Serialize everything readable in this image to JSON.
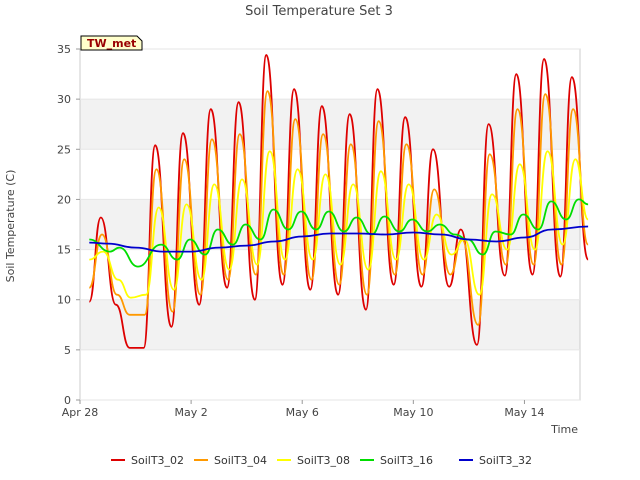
{
  "chart_data": {
    "type": "line",
    "title": "Soil Temperature Set 3",
    "xlabel": "Time",
    "ylabel": "Soil Temperature (C)",
    "ylim": [
      0,
      35
    ],
    "yticks": [
      0,
      5,
      10,
      15,
      20,
      25,
      30,
      35
    ],
    "xlim": [
      "2024-04-28",
      "2024-05-16"
    ],
    "xticks": [
      {
        "date": "2024-04-28",
        "label": "Apr 28"
      },
      {
        "date": "2024-05-02",
        "label": "May 2"
      },
      {
        "date": "2024-05-06",
        "label": "May 6"
      },
      {
        "date": "2024-05-10",
        "label": "May 10"
      },
      {
        "date": "2024-05-14",
        "label": "May 14"
      }
    ],
    "grid": "horizontal-bands",
    "legend_position": "bottom",
    "annotation": "TW_met",
    "series": [
      {
        "name": "SoilT3_02",
        "color": "#dd0000",
        "points": [
          [
            "2024-04-28T08:00",
            9.8
          ],
          [
            "2024-04-28T18:00",
            18.2
          ],
          [
            "2024-04-29T07:00",
            9.5
          ],
          [
            "2024-04-29T19:00",
            5.2
          ],
          [
            "2024-04-30T07:00",
            5.2
          ],
          [
            "2024-04-30T17:00",
            25.4
          ],
          [
            "2024-05-01T07:00",
            7.3
          ],
          [
            "2024-05-01T17:00",
            26.6
          ],
          [
            "2024-05-02T07:00",
            9.5
          ],
          [
            "2024-05-02T17:00",
            29.0
          ],
          [
            "2024-05-03T07:00",
            11.2
          ],
          [
            "2024-05-03T17:00",
            29.7
          ],
          [
            "2024-05-04T07:00",
            10.0
          ],
          [
            "2024-05-04T17:00",
            34.4
          ],
          [
            "2024-05-05T07:00",
            11.5
          ],
          [
            "2024-05-05T17:00",
            31.0
          ],
          [
            "2024-05-06T07:00",
            11.0
          ],
          [
            "2024-05-06T17:00",
            29.3
          ],
          [
            "2024-05-07T07:00",
            10.5
          ],
          [
            "2024-05-07T17:00",
            28.5
          ],
          [
            "2024-05-08T07:00",
            9.0
          ],
          [
            "2024-05-08T17:00",
            31.0
          ],
          [
            "2024-05-09T07:00",
            11.5
          ],
          [
            "2024-05-09T17:00",
            28.2
          ],
          [
            "2024-05-10T07:00",
            11.3
          ],
          [
            "2024-05-10T17:00",
            25.0
          ],
          [
            "2024-05-11T07:00",
            11.3
          ],
          [
            "2024-05-11T17:00",
            17.0
          ],
          [
            "2024-05-12T07:00",
            5.5
          ],
          [
            "2024-05-12T17:00",
            27.5
          ],
          [
            "2024-05-13T07:00",
            12.4
          ],
          [
            "2024-05-13T17:00",
            32.5
          ],
          [
            "2024-05-14T07:00",
            12.5
          ],
          [
            "2024-05-14T17:00",
            34.0
          ],
          [
            "2024-05-15T07:00",
            12.3
          ],
          [
            "2024-05-15T17:00",
            32.2
          ],
          [
            "2024-05-16T07:00",
            14.0
          ]
        ]
      },
      {
        "name": "SoilT3_04",
        "color": "#ff9900",
        "points": [
          [
            "2024-04-28T08:00",
            11.2
          ],
          [
            "2024-04-28T19:00",
            16.5
          ],
          [
            "2024-04-29T08:00",
            10.5
          ],
          [
            "2024-04-29T19:00",
            8.5
          ],
          [
            "2024-04-30T08:00",
            8.5
          ],
          [
            "2024-04-30T18:00",
            23.0
          ],
          [
            "2024-05-01T08:00",
            8.8
          ],
          [
            "2024-05-01T18:00",
            24.0
          ],
          [
            "2024-05-02T08:00",
            10.5
          ],
          [
            "2024-05-02T18:00",
            26.0
          ],
          [
            "2024-05-03T08:00",
            12.0
          ],
          [
            "2024-05-03T18:00",
            26.5
          ],
          [
            "2024-05-04T08:00",
            12.5
          ],
          [
            "2024-05-04T18:00",
            30.8
          ],
          [
            "2024-05-05T08:00",
            12.5
          ],
          [
            "2024-05-05T18:00",
            28.0
          ],
          [
            "2024-05-06T08:00",
            12.0
          ],
          [
            "2024-05-06T18:00",
            26.5
          ],
          [
            "2024-05-07T08:00",
            11.5
          ],
          [
            "2024-05-07T18:00",
            25.5
          ],
          [
            "2024-05-08T08:00",
            10.5
          ],
          [
            "2024-05-08T18:00",
            27.8
          ],
          [
            "2024-05-09T08:00",
            12.5
          ],
          [
            "2024-05-09T18:00",
            25.5
          ],
          [
            "2024-05-10T08:00",
            12.5
          ],
          [
            "2024-05-10T18:00",
            21.0
          ],
          [
            "2024-05-11T08:00",
            12.5
          ],
          [
            "2024-05-11T18:00",
            16.0
          ],
          [
            "2024-05-12T08:00",
            7.5
          ],
          [
            "2024-05-12T18:00",
            24.5
          ],
          [
            "2024-05-13T08:00",
            13.5
          ],
          [
            "2024-05-13T18:00",
            29.0
          ],
          [
            "2024-05-14T08:00",
            13.5
          ],
          [
            "2024-05-14T18:00",
            30.5
          ],
          [
            "2024-05-15T08:00",
            13.5
          ],
          [
            "2024-05-15T18:00",
            29.0
          ],
          [
            "2024-05-16T07:00",
            15.5
          ]
        ]
      },
      {
        "name": "SoilT3_08",
        "color": "#ffff00",
        "points": [
          [
            "2024-04-28T08:00",
            14.0
          ],
          [
            "2024-04-28T20:00",
            14.8
          ],
          [
            "2024-04-29T09:00",
            12.0
          ],
          [
            "2024-04-29T20:00",
            10.2
          ],
          [
            "2024-04-30T09:00",
            10.5
          ],
          [
            "2024-04-30T20:00",
            19.2
          ],
          [
            "2024-05-01T09:00",
            11.0
          ],
          [
            "2024-05-01T20:00",
            19.5
          ],
          [
            "2024-05-02T09:00",
            12.0
          ],
          [
            "2024-05-02T20:00",
            21.5
          ],
          [
            "2024-05-03T09:00",
            13.0
          ],
          [
            "2024-05-03T20:00",
            22.0
          ],
          [
            "2024-05-04T09:00",
            13.5
          ],
          [
            "2024-05-04T20:00",
            24.8
          ],
          [
            "2024-05-05T09:00",
            14.0
          ],
          [
            "2024-05-05T20:00",
            23.0
          ],
          [
            "2024-05-06T09:00",
            14.0
          ],
          [
            "2024-05-06T20:00",
            22.5
          ],
          [
            "2024-05-07T09:00",
            13.5
          ],
          [
            "2024-05-07T20:00",
            21.5
          ],
          [
            "2024-05-08T09:00",
            13.0
          ],
          [
            "2024-05-08T20:00",
            22.8
          ],
          [
            "2024-05-09T09:00",
            14.0
          ],
          [
            "2024-05-09T20:00",
            21.5
          ],
          [
            "2024-05-10T09:00",
            14.0
          ],
          [
            "2024-05-10T20:00",
            18.5
          ],
          [
            "2024-05-11T09:00",
            14.5
          ],
          [
            "2024-05-11T20:00",
            16.0
          ],
          [
            "2024-05-12T09:00",
            10.5
          ],
          [
            "2024-05-12T20:00",
            20.5
          ],
          [
            "2024-05-13T09:00",
            15.0
          ],
          [
            "2024-05-13T20:00",
            23.5
          ],
          [
            "2024-05-14T09:00",
            15.0
          ],
          [
            "2024-05-14T20:00",
            24.8
          ],
          [
            "2024-05-15T09:00",
            15.5
          ],
          [
            "2024-05-15T20:00",
            24.0
          ],
          [
            "2024-05-16T07:00",
            18.0
          ]
        ]
      },
      {
        "name": "SoilT3_16",
        "color": "#00dd00",
        "points": [
          [
            "2024-04-28T08:00",
            16.0
          ],
          [
            "2024-04-29T02:00",
            14.8
          ],
          [
            "2024-04-29T10:00",
            15.2
          ],
          [
            "2024-04-30T02:00",
            13.3
          ],
          [
            "2024-04-30T22:00",
            15.5
          ],
          [
            "2024-05-01T12:00",
            14.0
          ],
          [
            "2024-05-01T23:00",
            16.0
          ],
          [
            "2024-05-02T12:00",
            14.5
          ],
          [
            "2024-05-02T23:00",
            17.0
          ],
          [
            "2024-05-03T12:00",
            15.5
          ],
          [
            "2024-05-03T23:00",
            17.5
          ],
          [
            "2024-05-04T12:00",
            16.0
          ],
          [
            "2024-05-04T23:00",
            19.0
          ],
          [
            "2024-05-05T12:00",
            17.0
          ],
          [
            "2024-05-05T23:00",
            18.8
          ],
          [
            "2024-05-06T12:00",
            17.0
          ],
          [
            "2024-05-06T23:00",
            18.8
          ],
          [
            "2024-05-07T12:00",
            16.8
          ],
          [
            "2024-05-07T23:00",
            18.2
          ],
          [
            "2024-05-08T12:00",
            16.5
          ],
          [
            "2024-05-08T23:00",
            18.3
          ],
          [
            "2024-05-09T12:00",
            16.8
          ],
          [
            "2024-05-09T23:00",
            18.0
          ],
          [
            "2024-05-10T12:00",
            16.8
          ],
          [
            "2024-05-10T23:00",
            17.5
          ],
          [
            "2024-05-11T12:00",
            16.5
          ],
          [
            "2024-05-11T23:00",
            16.0
          ],
          [
            "2024-05-12T12:00",
            14.5
          ],
          [
            "2024-05-12T23:00",
            16.8
          ],
          [
            "2024-05-13T12:00",
            16.5
          ],
          [
            "2024-05-13T23:00",
            18.5
          ],
          [
            "2024-05-14T12:00",
            17.0
          ],
          [
            "2024-05-14T23:00",
            19.8
          ],
          [
            "2024-05-15T12:00",
            18.0
          ],
          [
            "2024-05-15T23:00",
            20.0
          ],
          [
            "2024-05-16T07:00",
            19.5
          ]
        ]
      },
      {
        "name": "SoilT3_32",
        "color": "#0000cc",
        "points": [
          [
            "2024-04-28T08:00",
            15.7
          ],
          [
            "2024-04-29T00:00",
            15.6
          ],
          [
            "2024-04-30T00:00",
            15.2
          ],
          [
            "2024-05-01T00:00",
            14.8
          ],
          [
            "2024-05-02T00:00",
            14.8
          ],
          [
            "2024-05-03T00:00",
            15.2
          ],
          [
            "2024-05-04T00:00",
            15.4
          ],
          [
            "2024-05-05T00:00",
            15.8
          ],
          [
            "2024-05-06T00:00",
            16.3
          ],
          [
            "2024-05-07T00:00",
            16.6
          ],
          [
            "2024-05-08T00:00",
            16.6
          ],
          [
            "2024-05-09T00:00",
            16.5
          ],
          [
            "2024-05-10T00:00",
            16.7
          ],
          [
            "2024-05-11T00:00",
            16.5
          ],
          [
            "2024-05-12T00:00",
            16.0
          ],
          [
            "2024-05-13T00:00",
            15.8
          ],
          [
            "2024-05-14T00:00",
            16.2
          ],
          [
            "2024-05-15T00:00",
            17.0
          ],
          [
            "2024-05-16T07:00",
            17.3
          ]
        ]
      }
    ]
  }
}
